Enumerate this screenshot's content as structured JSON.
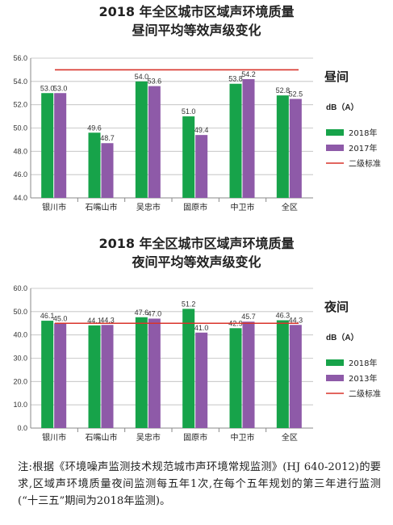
{
  "charts": [
    {
      "title_line1": "2018 年全区城市区域声环境质量",
      "title_line2": "昼间平均等效声级变化",
      "period_label": "昼间",
      "unit_label": "dB（A）",
      "standard_label": "二级标准"
    },
    {
      "title_line1": "2018 年全区城市区域声环境质量",
      "title_line2": "夜间平均等效声级变化",
      "period_label": "夜间",
      "unit_label": "dB（A）",
      "standard_label": "二级标准"
    }
  ],
  "note": "注:根据《环境噪声监测技术规范城市声环境常规监测》(HJ 640-2012)的要求,区域声环境质量夜间监测每五年1次,在每个五年规划的第三年进行监测(“十三五”期间为2018年监测)。",
  "colors": {
    "series_a": "#17a34a",
    "series_b": "#8e5aa8",
    "standard": "#d9342b",
    "grid": "#bdbdbd"
  },
  "chart_data": [
    {
      "type": "bar",
      "title": "2018 年全区城市区域声环境质量 昼间平均等效声级变化",
      "categories": [
        "银川市",
        "石嘴山市",
        "吴忠市",
        "固原市",
        "中卫市",
        "全区"
      ],
      "series": [
        {
          "name": "2018年",
          "values": [
            53.0,
            49.6,
            54.0,
            51.0,
            53.8,
            52.8
          ],
          "labels": [
            "53.0",
            "49.6",
            "54.0",
            "51.0",
            "53.8",
            "52.8"
          ]
        },
        {
          "name": "2017年",
          "values": [
            53.0,
            48.7,
            53.6,
            49.4,
            54.2,
            52.5
          ],
          "labels": [
            "53.0",
            "48.7",
            "53.6",
            "49.4",
            "54.2",
            "52.5"
          ]
        }
      ],
      "reference_line": {
        "name": "二级标准",
        "value": 55.0
      },
      "ylabel": "dB（A）",
      "ylim": [
        44.0,
        56.0
      ],
      "yticks": [
        "44.0",
        "46.0",
        "48.0",
        "50.0",
        "52.0",
        "54.0",
        "56.0"
      ],
      "grid": true,
      "legend_position": "right"
    },
    {
      "type": "bar",
      "title": "2018 年全区城市区域声环境质量 夜间平均等效声级变化",
      "categories": [
        "银川市",
        "石嘴山市",
        "吴忠市",
        "固原市",
        "中卫市",
        "全区"
      ],
      "series": [
        {
          "name": "2018年",
          "values": [
            46.1,
            44.1,
            47.6,
            51.2,
            42.9,
            46.3
          ],
          "labels": [
            "46.1",
            "44.1",
            "47.6",
            "51.2",
            "42.9",
            "46.3"
          ]
        },
        {
          "name": "2013年",
          "values": [
            45.0,
            44.3,
            47.0,
            41.0,
            45.7,
            44.3
          ],
          "labels": [
            "45.0",
            "44.3",
            "47.0",
            "41.0",
            "45.7",
            "44.3"
          ]
        }
      ],
      "reference_line": {
        "name": "二级标准",
        "value": 45.0
      },
      "ylabel": "dB（A）",
      "ylim": [
        0.0,
        60.0
      ],
      "yticks": [
        "0.0",
        "10.0",
        "20.0",
        "30.0",
        "40.0",
        "50.0",
        "60.0"
      ],
      "grid": true,
      "legend_position": "right"
    }
  ]
}
